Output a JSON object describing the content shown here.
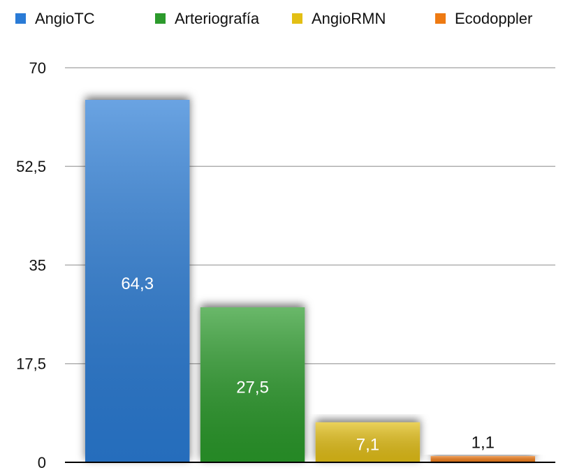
{
  "chart_data": {
    "type": "bar",
    "categories": [
      null
    ],
    "series": [
      {
        "name": "AngioTC",
        "color": "#2a7bd6",
        "values": [
          64.3
        ],
        "value_labels": [
          "64,3"
        ]
      },
      {
        "name": "Arteriografía",
        "color": "#2c9a2c",
        "values": [
          27.5
        ],
        "value_labels": [
          "27,5"
        ]
      },
      {
        "name": "AngioRMN",
        "color": "#e3bf14",
        "values": [
          7.1
        ],
        "value_labels": [
          "7,1"
        ]
      },
      {
        "name": "Ecodoppler",
        "color": "#ee7a12",
        "values": [
          1.1
        ],
        "value_labels": [
          "1,1"
        ]
      }
    ],
    "ylim": [
      0,
      70
    ],
    "yticks": [
      0,
      {
        "value": 17.5,
        "label": "17,5"
      },
      35,
      {
        "value": 52.5,
        "label": "52,5"
      },
      70
    ],
    "grid": true,
    "legend": "top"
  }
}
